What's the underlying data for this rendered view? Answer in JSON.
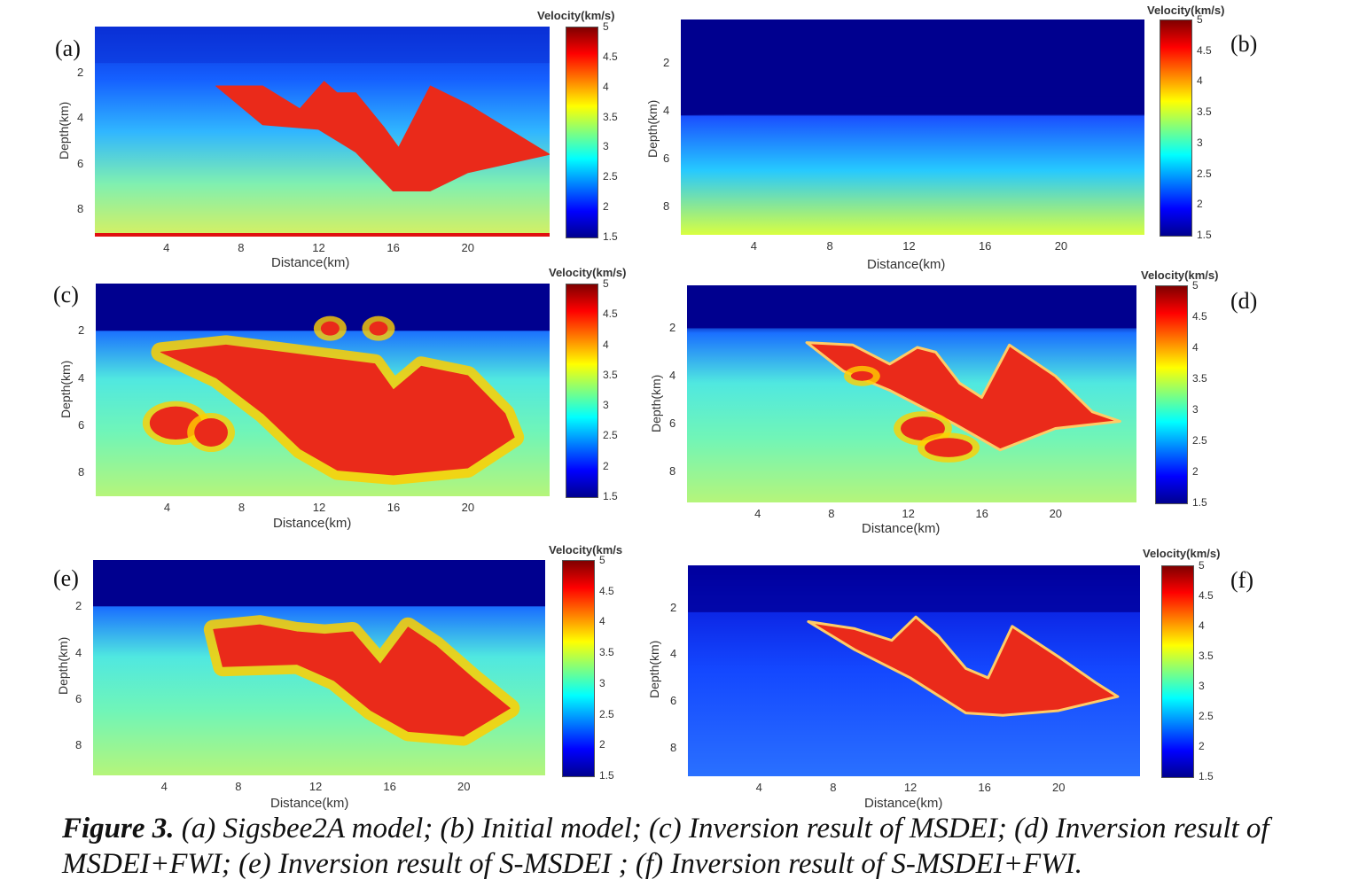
{
  "figure": {
    "caption_lead": "Figure 3.",
    "caption_text": " (a) Sigsbee2A model; (b) Initial model; (c) Inversion result of MSDEI; (d) Inversion result of MSDEI+FWI; (e) Inversion result of S-MSDEI ; (f) Inversion result of  S-MSDEI+FWI."
  },
  "colors": {
    "jet": [
      "#00008f",
      "#0000ff",
      "#007fff",
      "#00ffff",
      "#7fff7f",
      "#ffff00",
      "#ff7f00",
      "#ff0000",
      "#7f0000"
    ]
  },
  "chart_data": [
    {
      "type": "heatmap",
      "label": "(a)",
      "xlabel": "Distance(km)",
      "ylabel": "Depth(km)",
      "x_ticks": [
        4,
        8,
        12,
        16,
        20
      ],
      "y_ticks": [
        2,
        4,
        6,
        8
      ],
      "colorbar": {
        "title": "Velocity(km/s)",
        "ticks": [
          1.5,
          2,
          2.5,
          3,
          3.5,
          4,
          4.5,
          5
        ]
      }
    },
    {
      "type": "heatmap",
      "label": "(b)",
      "xlabel": "Distance(km)",
      "ylabel": "Depth(km)",
      "x_ticks": [
        4,
        8,
        12,
        16,
        20
      ],
      "y_ticks": [
        2,
        4,
        6,
        8
      ],
      "colorbar": {
        "title": "Velocity(km/s)",
        "ticks": [
          1.5,
          2,
          2.5,
          3,
          3.5,
          4,
          4.5,
          5
        ]
      }
    },
    {
      "type": "heatmap",
      "label": "(c)",
      "xlabel": "Distance(km)",
      "ylabel": "Depth(km)",
      "x_ticks": [
        4,
        8,
        12,
        16,
        20
      ],
      "y_ticks": [
        2,
        4,
        6,
        8
      ],
      "colorbar": {
        "title": "Velocity(km/s)",
        "ticks": [
          1.5,
          2,
          2.5,
          3,
          3.5,
          4,
          4.5,
          5
        ]
      }
    },
    {
      "type": "heatmap",
      "label": "(d)",
      "xlabel": "Distance(km)",
      "ylabel": "Depth(km)",
      "x_ticks": [
        4,
        8,
        12,
        16,
        20
      ],
      "y_ticks": [
        2,
        4,
        6,
        8
      ],
      "colorbar": {
        "title": "Velocity(km/s)",
        "ticks": [
          1.5,
          2,
          2.5,
          3,
          3.5,
          4,
          4.5,
          5
        ]
      }
    },
    {
      "type": "heatmap",
      "label": "(e)",
      "xlabel": "Distance(km)",
      "ylabel": "Depth(km)",
      "x_ticks": [
        4,
        8,
        12,
        16,
        20
      ],
      "y_ticks": [
        2,
        4,
        6,
        8
      ],
      "colorbar": {
        "title": "Velocity(km/s",
        "ticks": [
          1.5,
          2,
          2.5,
          3,
          3.5,
          4,
          4.5,
          5
        ]
      }
    },
    {
      "type": "heatmap",
      "label": "(f)",
      "xlabel": "Distance(km)",
      "ylabel": "Depth(km)",
      "x_ticks": [
        4,
        8,
        12,
        16,
        20
      ],
      "y_ticks": [
        2,
        4,
        6,
        8
      ],
      "colorbar": {
        "title": "Velocity(km/s)",
        "ticks": [
          1.5,
          2,
          2.5,
          3,
          3.5,
          4,
          4.5,
          5
        ]
      }
    }
  ]
}
